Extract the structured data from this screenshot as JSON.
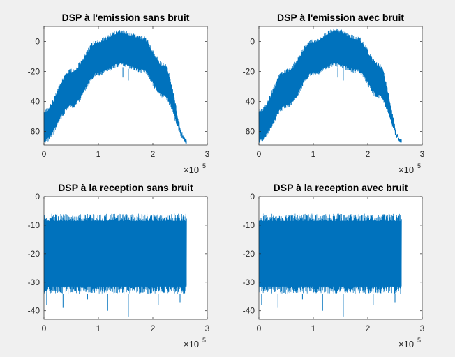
{
  "figure": {
    "background": "#f0f0f0",
    "axes_background": "#ffffff",
    "series_color": "#0072bd",
    "axis_color": "#262626"
  },
  "chart_data": [
    {
      "type": "line",
      "title": "DSP à l'emission sans bruit",
      "xlabel": "",
      "ylabel": "",
      "xlim": [
        0,
        3
      ],
      "ylim": [
        -69,
        10
      ],
      "xticks": [
        0,
        1,
        2,
        3
      ],
      "yticks": [
        0,
        -20,
        -40,
        -60
      ],
      "x_multiplier": {
        "base": "×10",
        "exponent": "5"
      },
      "series_shape": "dome",
      "x_range": [
        0,
        2.62
      ],
      "upper_envelope": {
        "x": [
          0,
          0.5,
          1.0,
          1.4,
          1.8,
          2.2,
          2.62
        ],
        "y": [
          -45,
          -18,
          2,
          8,
          4,
          -14,
          -65
        ]
      },
      "lower_envelope": {
        "x": [
          0,
          0.5,
          1.0,
          1.4,
          1.8,
          2.2,
          2.62
        ],
        "y": [
          -68,
          -45,
          -23,
          -17,
          -21,
          -38,
          -68
        ]
      },
      "grid": false
    },
    {
      "type": "line",
      "title": "DSP à l'emission avec bruit",
      "xlabel": "",
      "ylabel": "",
      "xlim": [
        0,
        3
      ],
      "ylim": [
        -69,
        10
      ],
      "xticks": [
        0,
        1,
        2,
        3
      ],
      "yticks": [
        0,
        -20,
        -40,
        -60
      ],
      "x_multiplier": {
        "base": "×10",
        "exponent": "5"
      },
      "series_shape": "dome",
      "x_range": [
        0,
        2.62
      ],
      "upper_envelope": {
        "x": [
          0,
          0.5,
          1.0,
          1.4,
          1.8,
          2.2,
          2.62
        ],
        "y": [
          -45,
          -18,
          2,
          9,
          4,
          -14,
          -65
        ]
      },
      "lower_envelope": {
        "x": [
          0,
          0.5,
          1.0,
          1.4,
          1.8,
          2.2,
          2.62
        ],
        "y": [
          -68,
          -45,
          -23,
          -17,
          -21,
          -38,
          -68
        ]
      },
      "grid": false
    },
    {
      "type": "line",
      "title": "DSP à la reception sans bruit",
      "xlabel": "",
      "ylabel": "",
      "xlim": [
        0,
        3
      ],
      "ylim": [
        -43,
        0
      ],
      "xticks": [
        0,
        1,
        2,
        3
      ],
      "yticks": [
        0,
        -10,
        -20,
        -30,
        -40
      ],
      "x_multiplier": {
        "base": "×10",
        "exponent": "5"
      },
      "series_shape": "band",
      "x_range": [
        0,
        2.62
      ],
      "upper_envelope": {
        "x": [
          0,
          2.62
        ],
        "y": [
          -6,
          -6
        ]
      },
      "lower_envelope": {
        "x": [
          0,
          2.62
        ],
        "y": [
          -34,
          -34
        ]
      },
      "spikes_low": [
        [
          0.05,
          -38
        ],
        [
          0.35,
          -39
        ],
        [
          0.8,
          -36
        ],
        [
          1.17,
          -40
        ],
        [
          1.55,
          -42
        ],
        [
          2.1,
          -38
        ],
        [
          2.5,
          -37
        ]
      ],
      "grid": false
    },
    {
      "type": "line",
      "title": "DSP à la reception avec bruit",
      "xlabel": "",
      "ylabel": "",
      "xlim": [
        0,
        3
      ],
      "ylim": [
        -43,
        0
      ],
      "xticks": [
        0,
        1,
        2,
        3
      ],
      "yticks": [
        0,
        -10,
        -20,
        -30,
        -40
      ],
      "x_multiplier": {
        "base": "×10",
        "exponent": "5"
      },
      "series_shape": "band",
      "x_range": [
        0,
        2.62
      ],
      "upper_envelope": {
        "x": [
          0,
          2.62
        ],
        "y": [
          -6,
          -6
        ]
      },
      "lower_envelope": {
        "x": [
          0,
          2.62
        ],
        "y": [
          -34,
          -34
        ]
      },
      "spikes_low": [
        [
          0.05,
          -38
        ],
        [
          0.35,
          -39
        ],
        [
          0.8,
          -36
        ],
        [
          1.17,
          -40
        ],
        [
          1.55,
          -42
        ],
        [
          2.1,
          -38
        ],
        [
          2.5,
          -37
        ]
      ],
      "grid": false
    }
  ]
}
